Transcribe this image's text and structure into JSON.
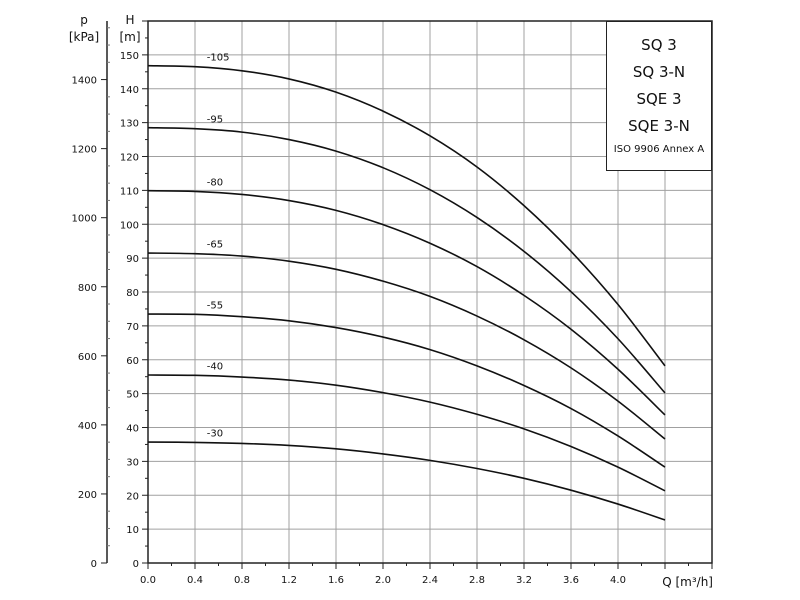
{
  "chart_data": {
    "type": "line",
    "title_lines": [
      "SQ 3",
      "SQ 3-N",
      "SQE 3",
      "SQE 3-N"
    ],
    "standard": "ISO 9906 Annex A",
    "xlabel": "Q [m³/h]",
    "ylabel": "H",
    "ylabel_unit": "[m]",
    "y2label": "p",
    "y2label_unit": "[kPa]",
    "xlim": [
      0,
      4.8
    ],
    "ylim": [
      0,
      160
    ],
    "y2lim": [
      0,
      1569
    ],
    "xticks": [
      "0.0",
      "0.4",
      "0.8",
      "1.2",
      "1.6",
      "2.0",
      "2.4",
      "2.8",
      "3.2",
      "3.6",
      "4.0"
    ],
    "yticks": [
      "0",
      "10",
      "20",
      "30",
      "40",
      "50",
      "60",
      "70",
      "80",
      "90",
      "100",
      "110",
      "120",
      "130",
      "140",
      "150"
    ],
    "y2ticks": [
      "0",
      "200",
      "400",
      "600",
      "800",
      "1000",
      "1200",
      "1400"
    ],
    "grid": true,
    "x": [
      0,
      0.4,
      0.8,
      1.2,
      1.6,
      2.0,
      2.4,
      2.8,
      3.2,
      3.6,
      4.0,
      4.4
    ],
    "series": [
      {
        "name": "-105",
        "values": [
          146.8,
          146.5,
          145.3,
          142.9,
          139.0,
          133.4,
          126.1,
          116.9,
          105.5,
          92.0,
          76.3,
          58.2
        ]
      },
      {
        "name": "-95",
        "values": [
          128.5,
          128.2,
          127.2,
          125.0,
          121.6,
          116.7,
          110.2,
          102.0,
          92.0,
          80.1,
          66.2,
          50.2
        ]
      },
      {
        "name": "-80",
        "values": [
          109.9,
          109.7,
          108.8,
          107.0,
          104.1,
          99.9,
          94.4,
          87.5,
          79.0,
          69.0,
          57.2,
          43.7
        ]
      },
      {
        "name": "-65",
        "values": [
          91.5,
          91.3,
          90.6,
          89.1,
          86.7,
          83.2,
          78.7,
          72.9,
          65.9,
          57.6,
          47.8,
          36.6
        ]
      },
      {
        "name": "-55",
        "values": [
          73.5,
          73.4,
          72.7,
          71.5,
          69.5,
          66.7,
          63.0,
          58.2,
          52.4,
          45.6,
          37.5,
          28.3
        ]
      },
      {
        "name": "-40",
        "values": [
          55.5,
          55.4,
          54.9,
          54.0,
          52.5,
          50.3,
          47.5,
          43.9,
          39.6,
          34.4,
          28.3,
          21.3
        ]
      },
      {
        "name": "-30",
        "values": [
          35.7,
          35.6,
          35.3,
          34.7,
          33.7,
          32.2,
          30.3,
          27.9,
          25.0,
          21.5,
          17.4,
          12.7
        ]
      }
    ],
    "colors": {
      "curve": "#111111",
      "grid": "#a0a0a0",
      "axis": "#222222"
    }
  }
}
